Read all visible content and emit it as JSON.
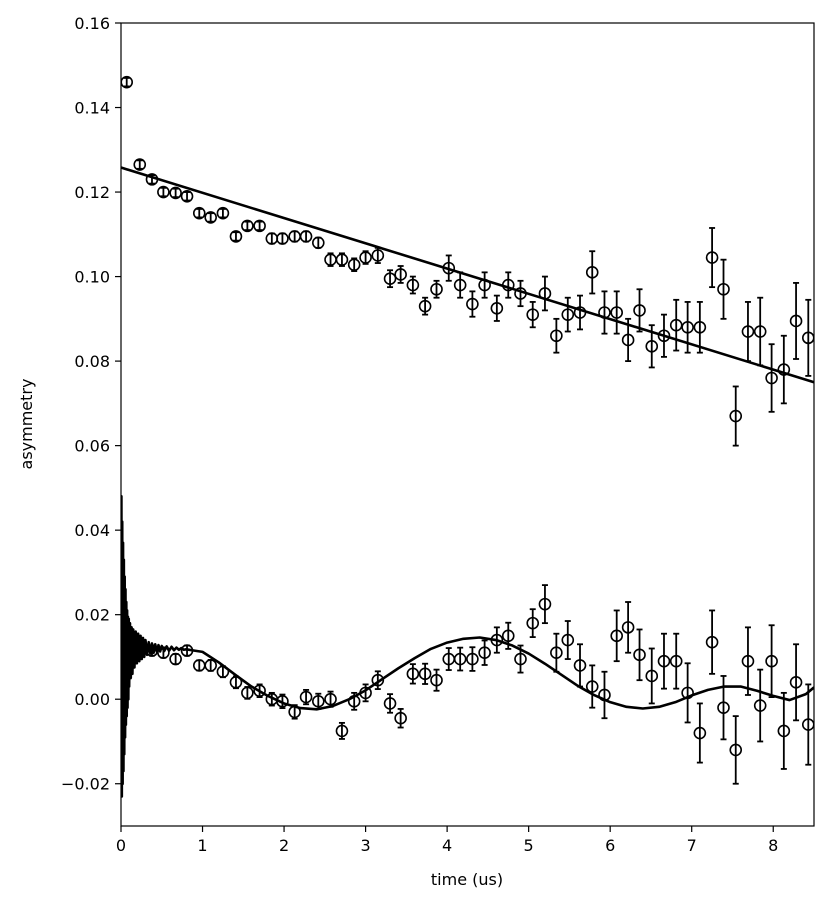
{
  "chart_data": {
    "type": "scatter",
    "xlabel": "time (us)",
    "ylabel": "asymmetry",
    "xlim": [
      0,
      8.5
    ],
    "ylim": [
      -0.03,
      0.16
    ],
    "grid": false,
    "x_ticks": [
      {
        "value": 0,
        "label": "0"
      },
      {
        "value": 1,
        "label": "1"
      },
      {
        "value": 2,
        "label": "2"
      },
      {
        "value": 3,
        "label": "3"
      },
      {
        "value": 4,
        "label": "4"
      },
      {
        "value": 5,
        "label": "5"
      },
      {
        "value": 6,
        "label": "6"
      },
      {
        "value": 7,
        "label": "7"
      },
      {
        "value": 8,
        "label": "8"
      }
    ],
    "y_ticks": [
      {
        "value": -0.02,
        "label": "−0.02"
      },
      {
        "value": 0.0,
        "label": "0.00"
      },
      {
        "value": 0.02,
        "label": "0.02"
      },
      {
        "value": 0.04,
        "label": "0.04"
      },
      {
        "value": 0.06,
        "label": "0.06"
      },
      {
        "value": 0.08,
        "label": "0.08"
      },
      {
        "value": 0.1,
        "label": "0.10"
      },
      {
        "value": 0.12,
        "label": "0.12"
      },
      {
        "value": 0.14,
        "label": "0.14"
      },
      {
        "value": 0.16,
        "label": "0.16"
      }
    ],
    "series": [
      {
        "kind": "errorbar-markers",
        "color": "#000000",
        "x": [
          0.07,
          0.23,
          0.38,
          0.52,
          0.67,
          0.81,
          0.96,
          1.1,
          1.25,
          1.41,
          1.55,
          1.7,
          1.85,
          1.98,
          2.13,
          2.27,
          2.42,
          2.57,
          2.71,
          2.86,
          3.0,
          3.15,
          3.3,
          3.43,
          3.58,
          3.73,
          3.87,
          4.02,
          4.16,
          4.31,
          4.46,
          4.61,
          4.75,
          4.9,
          5.05,
          5.2,
          5.34,
          5.48,
          5.63,
          5.78,
          5.93,
          6.08,
          6.22,
          6.36,
          6.51,
          6.66,
          6.81,
          6.95,
          7.1,
          7.25,
          7.39,
          7.54,
          7.69,
          7.84,
          7.98,
          8.13,
          8.28,
          8.43
        ],
        "y": [
          0.146,
          0.1265,
          0.123,
          0.12,
          0.1198,
          0.119,
          0.115,
          0.114,
          0.115,
          0.1095,
          0.112,
          0.112,
          0.109,
          0.109,
          0.1095,
          0.1095,
          0.108,
          0.104,
          0.104,
          0.1028,
          0.1045,
          0.105,
          0.0995,
          0.1005,
          0.098,
          0.093,
          0.097,
          0.102,
          0.098,
          0.0935,
          0.098,
          0.0925,
          0.098,
          0.096,
          0.091,
          0.096,
          0.086,
          0.091,
          0.0915,
          0.101,
          0.0915,
          0.0915,
          0.085,
          0.092,
          0.0835,
          0.086,
          0.0885,
          0.088,
          0.088,
          0.1045,
          0.097,
          0.067,
          0.087,
          0.087,
          0.076,
          0.078,
          0.0895,
          0.0855
        ],
        "yerr": [
          0.001,
          0.001,
          0.001,
          0.001,
          0.001,
          0.001,
          0.001,
          0.001,
          0.001,
          0.001,
          0.001,
          0.001,
          0.0012,
          0.0012,
          0.0012,
          0.0012,
          0.0012,
          0.0015,
          0.0015,
          0.0015,
          0.0015,
          0.0018,
          0.002,
          0.002,
          0.002,
          0.002,
          0.002,
          0.003,
          0.003,
          0.003,
          0.003,
          0.003,
          0.003,
          0.003,
          0.003,
          0.004,
          0.004,
          0.004,
          0.004,
          0.005,
          0.005,
          0.005,
          0.005,
          0.005,
          0.005,
          0.005,
          0.006,
          0.006,
          0.006,
          0.007,
          0.007,
          0.007,
          0.007,
          0.008,
          0.008,
          0.008,
          0.009,
          0.009
        ]
      },
      {
        "kind": "line",
        "color": "#000000",
        "x": [
          0,
          8.5
        ],
        "y": [
          0.1258,
          0.075
        ]
      },
      {
        "kind": "errorbar-markers",
        "color": "#000000",
        "x": [
          0.17,
          0.38,
          0.52,
          0.67,
          0.81,
          0.96,
          1.1,
          1.25,
          1.41,
          1.55,
          1.7,
          1.85,
          1.98,
          2.13,
          2.27,
          2.42,
          2.57,
          2.71,
          2.86,
          3.0,
          3.15,
          3.3,
          3.43,
          3.58,
          3.73,
          3.87,
          4.02,
          4.16,
          4.31,
          4.46,
          4.61,
          4.75,
          4.9,
          5.05,
          5.2,
          5.34,
          5.48,
          5.63,
          5.78,
          5.93,
          6.08,
          6.22,
          6.36,
          6.51,
          6.66,
          6.81,
          6.95,
          7.1,
          7.25,
          7.39,
          7.54,
          7.69,
          7.84,
          7.98,
          8.13,
          8.28,
          8.43
        ],
        "y": [
          0.0128,
          0.0115,
          0.011,
          0.0095,
          0.0115,
          0.008,
          0.008,
          0.0065,
          0.004,
          0.0015,
          0.002,
          0.0,
          -0.0005,
          -0.003,
          0.0005,
          -0.0005,
          0.0,
          -0.0075,
          -0.0005,
          0.0015,
          0.0045,
          -0.001,
          -0.0045,
          0.006,
          0.006,
          0.0045,
          0.0095,
          0.0095,
          0.0095,
          0.011,
          0.014,
          0.015,
          0.0095,
          0.018,
          0.0225,
          0.011,
          0.014,
          0.008,
          0.003,
          0.001,
          0.015,
          0.017,
          0.0105,
          0.0055,
          0.009,
          0.009,
          0.0015,
          -0.008,
          0.0135,
          -0.002,
          -0.012,
          0.009,
          -0.0015,
          0.009,
          -0.0075,
          0.004,
          -0.006
        ],
        "yerr": [
          0.0012,
          0.0012,
          0.0012,
          0.0012,
          0.0012,
          0.0012,
          0.0013,
          0.0013,
          0.0014,
          0.0014,
          0.0015,
          0.0015,
          0.0016,
          0.0016,
          0.0017,
          0.0018,
          0.0018,
          0.0019,
          0.002,
          0.002,
          0.0021,
          0.0022,
          0.0022,
          0.0023,
          0.0024,
          0.0025,
          0.0026,
          0.0027,
          0.0028,
          0.0029,
          0.003,
          0.0031,
          0.0032,
          0.0033,
          0.0045,
          0.0045,
          0.0045,
          0.005,
          0.005,
          0.0055,
          0.006,
          0.006,
          0.006,
          0.0065,
          0.0065,
          0.0065,
          0.007,
          0.007,
          0.0075,
          0.0075,
          0.008,
          0.008,
          0.0085,
          0.0085,
          0.009,
          0.009,
          0.0095
        ]
      },
      {
        "kind": "line",
        "color": "#000000",
        "x": [
          0.0,
          0.005,
          0.01,
          0.015,
          0.02,
          0.025,
          0.03,
          0.035,
          0.04,
          0.045,
          0.05,
          0.055,
          0.06,
          0.065,
          0.07,
          0.075,
          0.08,
          0.085,
          0.09,
          0.095,
          0.1,
          0.11,
          0.12,
          0.13,
          0.14,
          0.15,
          0.165,
          0.18,
          0.195,
          0.21,
          0.225,
          0.24,
          0.255,
          0.27,
          0.285,
          0.3,
          0.32,
          0.34,
          0.36,
          0.38,
          0.4,
          0.42,
          0.44,
          0.46,
          0.48,
          0.5,
          0.53,
          0.56,
          0.59,
          0.62,
          0.65,
          0.68,
          0.71,
          0.74,
          0.77,
          0.8,
          0.9,
          1.0,
          1.2,
          1.4,
          1.6,
          1.8,
          2.0,
          2.2,
          2.4,
          2.6,
          2.8,
          3.0,
          3.2,
          3.4,
          3.6,
          3.8,
          4.0,
          4.2,
          4.4,
          4.6,
          4.8,
          5.0,
          5.2,
          5.4,
          5.6,
          5.8,
          6.0,
          6.2,
          6.4,
          6.6,
          6.8,
          7.0,
          7.2,
          7.4,
          7.6,
          7.8,
          8.0,
          8.2,
          8.4,
          8.5
        ],
        "y": [
          0.015,
          0.048,
          -0.023,
          0.042,
          -0.02,
          0.037,
          -0.017,
          0.033,
          -0.013,
          0.029,
          -0.009,
          0.026,
          -0.006,
          0.023,
          -0.004,
          0.021,
          -0.002,
          0.0195,
          0.0,
          0.019,
          0.003,
          0.018,
          0.005,
          0.017,
          0.006,
          0.0165,
          0.0075,
          0.016,
          0.0085,
          0.0155,
          0.009,
          0.015,
          0.0095,
          0.0145,
          0.01,
          0.014,
          0.0105,
          0.0135,
          0.0108,
          0.0132,
          0.011,
          0.013,
          0.0112,
          0.0128,
          0.0113,
          0.0126,
          0.0114,
          0.0125,
          0.0115,
          0.0124,
          0.0116,
          0.0122,
          0.0117,
          0.0121,
          0.0117,
          0.0118,
          0.0115,
          0.0112,
          0.0087,
          0.0058,
          0.003,
          0.0008,
          -0.001,
          -0.0021,
          -0.0024,
          -0.0016,
          0.0,
          0.0021,
          0.0047,
          0.0073,
          0.0097,
          0.0119,
          0.0134,
          0.0143,
          0.0146,
          0.014,
          0.0127,
          0.0108,
          0.0084,
          0.0058,
          0.0032,
          0.001,
          -0.0007,
          -0.0018,
          -0.0022,
          -0.0018,
          -0.0007,
          0.0009,
          0.0022,
          0.003,
          0.003,
          0.002,
          0.0008,
          -0.0002,
          0.0012,
          0.0028
        ]
      }
    ]
  }
}
